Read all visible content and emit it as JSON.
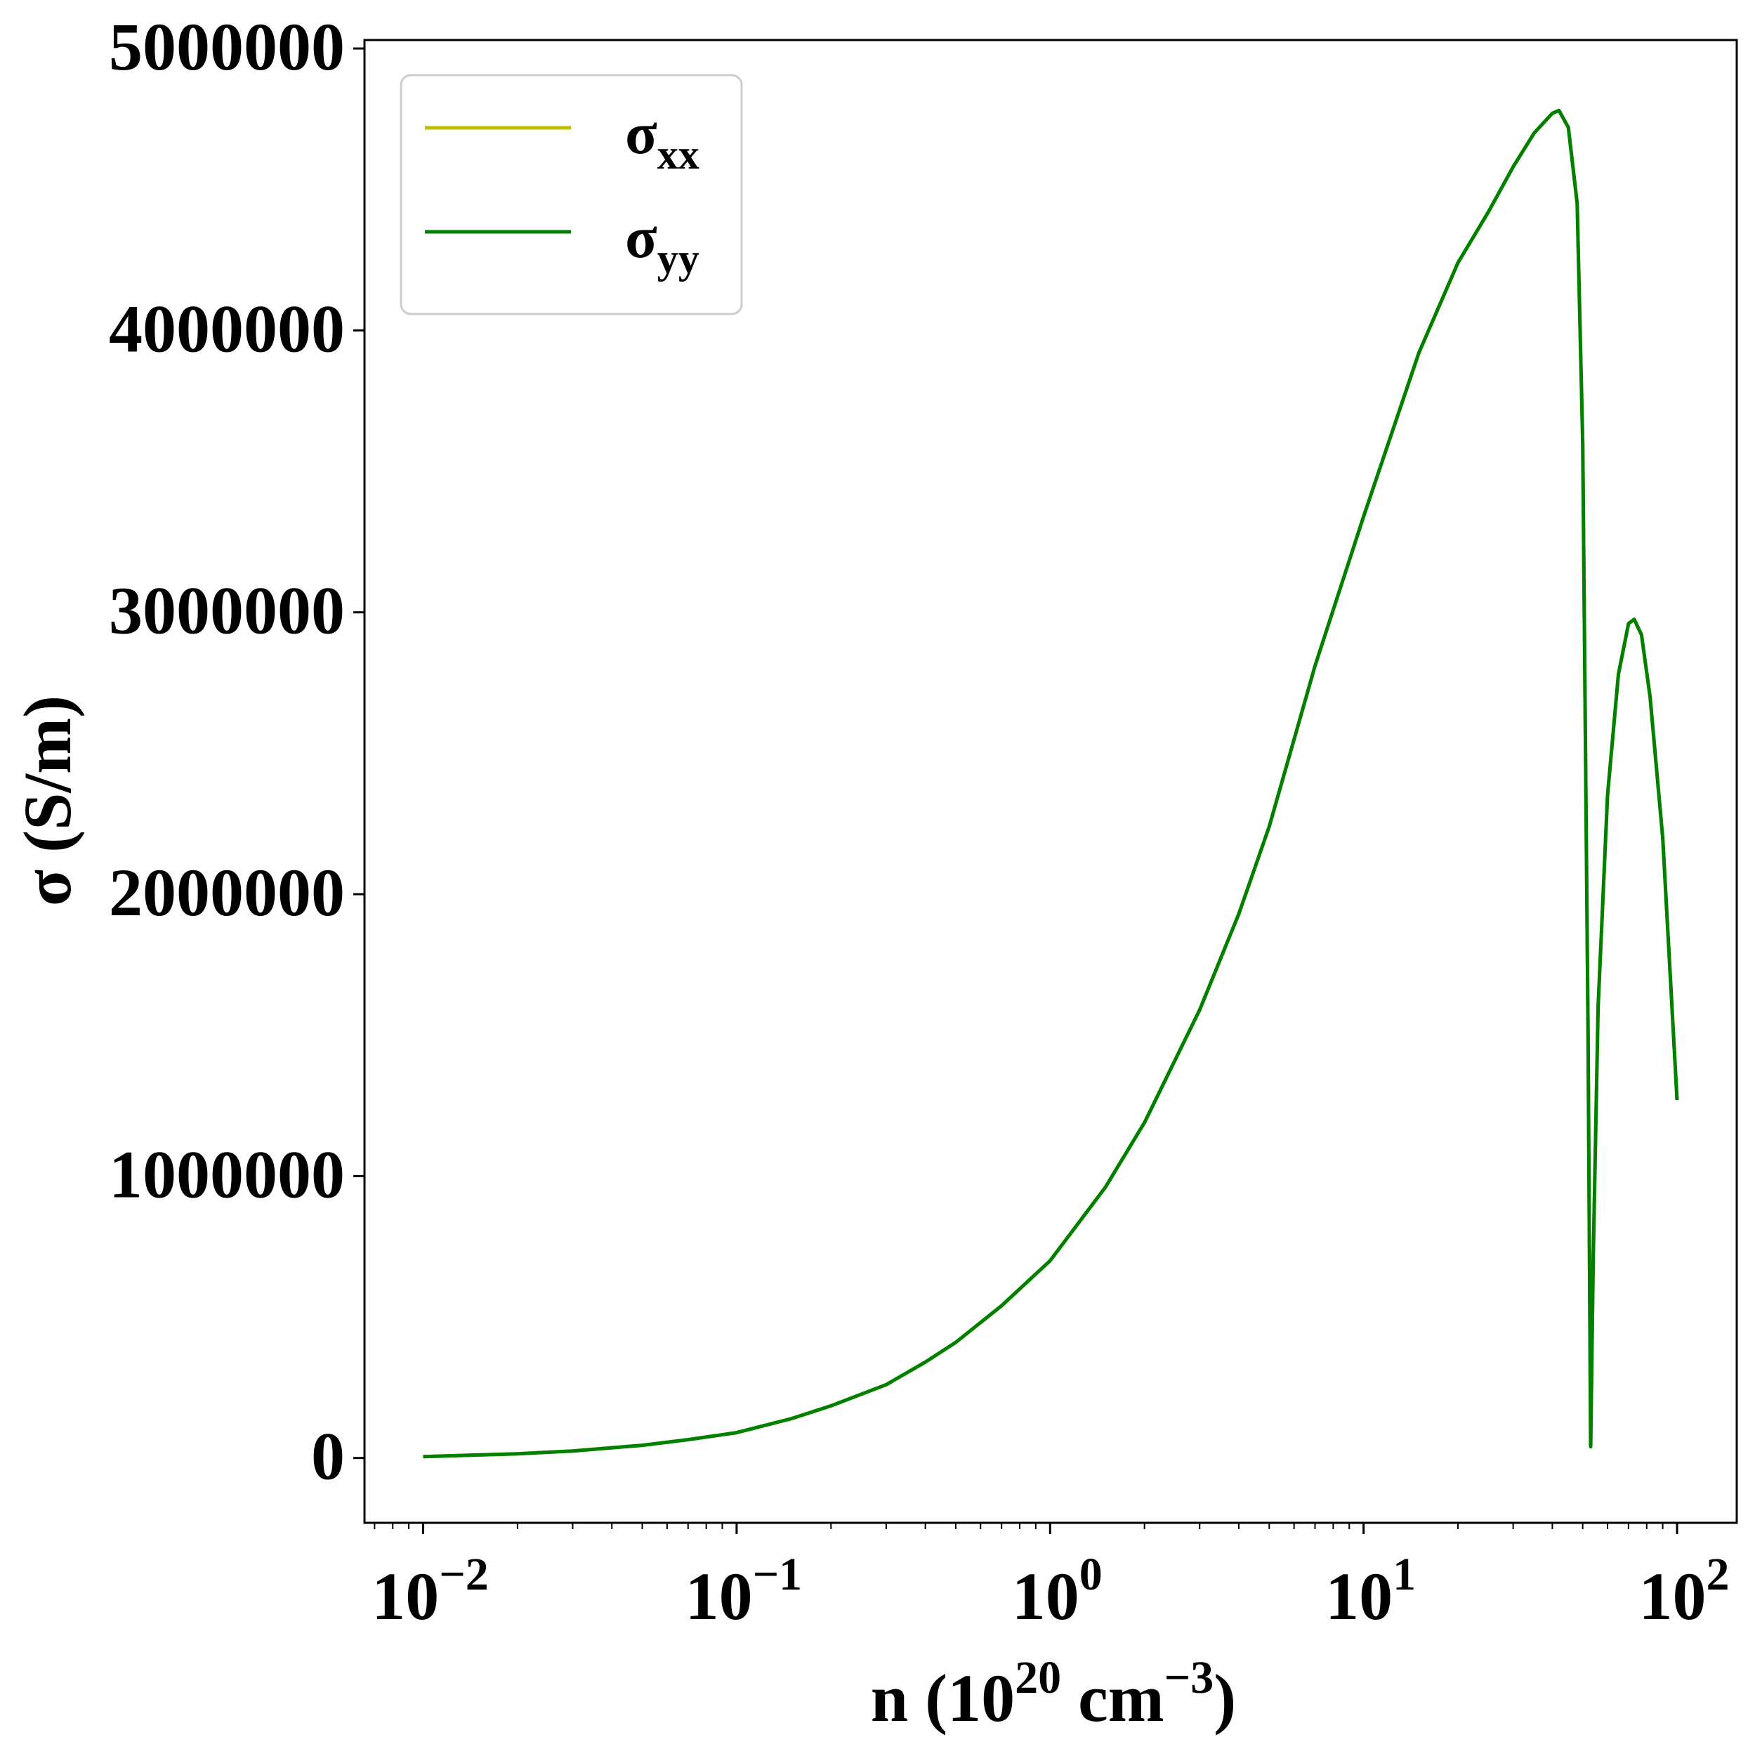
{
  "chart_data": {
    "type": "line",
    "xscale": "log",
    "xlim": [
      0.0065,
      155
    ],
    "ylim": [
      -230000,
      5030000
    ],
    "xlabel": {
      "base": "n (10",
      "sup1": "20",
      "mid": " cm",
      "sup2": "−3",
      "end": ")"
    },
    "ylabel": "σ (S/m)",
    "yticks": [
      0,
      1000000,
      2000000,
      3000000,
      4000000,
      5000000
    ],
    "ytick_labels": [
      "0",
      "1000000",
      "2000000",
      "3000000",
      "4000000",
      "5000000"
    ],
    "xticks": [
      0.01,
      0.1,
      1,
      10,
      100
    ],
    "xtick_labels": [
      {
        "base": "10",
        "exp": "−2"
      },
      {
        "base": "10",
        "exp": "−1"
      },
      {
        "base": "10",
        "exp": "0"
      },
      {
        "base": "10",
        "exp": "1"
      },
      {
        "base": "10",
        "exp": "2"
      }
    ],
    "grid": false,
    "legend_position": "top-left",
    "series": [
      {
        "name": "σxx",
        "name_main": "σ",
        "name_sub": "xx",
        "color": "#bfbf00",
        "x": [
          0.01,
          0.02,
          0.03,
          0.05,
          0.07,
          0.1,
          0.15,
          0.2,
          0.3,
          0.4,
          0.5,
          0.7,
          1.0,
          1.5,
          2.0,
          3.0,
          4.0,
          5.0,
          7.0,
          10.0,
          15.0,
          20.0,
          25.0,
          30.0,
          35.0,
          40.0,
          42.0,
          45.0,
          48.0,
          50.0,
          52.0,
          53.0,
          54.0,
          56.0,
          60.0,
          65.0,
          70.0,
          73.0,
          77.0,
          82.0,
          90.0,
          100.0
        ],
        "y": [
          5000,
          15000,
          25000,
          45000,
          65000,
          90000,
          140000,
          185000,
          260000,
          340000,
          410000,
          540000,
          700000,
          960000,
          1190000,
          1590000,
          1930000,
          2240000,
          2810000,
          3340000,
          3920000,
          4240000,
          4420000,
          4580000,
          4700000,
          4770000,
          4780000,
          4720000,
          4450000,
          3600000,
          1500000,
          40000,
          700000,
          1600000,
          2350000,
          2780000,
          2960000,
          2975000,
          2920000,
          2700000,
          2200000,
          1270000
        ]
      },
      {
        "name": "σyy",
        "name_main": "σ",
        "name_sub": "yy",
        "color": "#008000",
        "x": [
          0.01,
          0.02,
          0.03,
          0.05,
          0.07,
          0.1,
          0.15,
          0.2,
          0.3,
          0.4,
          0.5,
          0.7,
          1.0,
          1.5,
          2.0,
          3.0,
          4.0,
          5.0,
          7.0,
          10.0,
          15.0,
          20.0,
          25.0,
          30.0,
          35.0,
          40.0,
          42.0,
          45.0,
          48.0,
          50.0,
          52.0,
          53.0,
          54.0,
          56.0,
          60.0,
          65.0,
          70.0,
          73.0,
          77.0,
          82.0,
          90.0,
          100.0
        ],
        "y": [
          5000,
          15000,
          25000,
          45000,
          65000,
          90000,
          140000,
          185000,
          260000,
          340000,
          410000,
          540000,
          700000,
          960000,
          1190000,
          1590000,
          1930000,
          2240000,
          2810000,
          3340000,
          3920000,
          4240000,
          4420000,
          4580000,
          4700000,
          4770000,
          4780000,
          4720000,
          4450000,
          3600000,
          1500000,
          40000,
          700000,
          1600000,
          2350000,
          2780000,
          2960000,
          2975000,
          2920000,
          2700000,
          2200000,
          1270000
        ]
      }
    ]
  }
}
